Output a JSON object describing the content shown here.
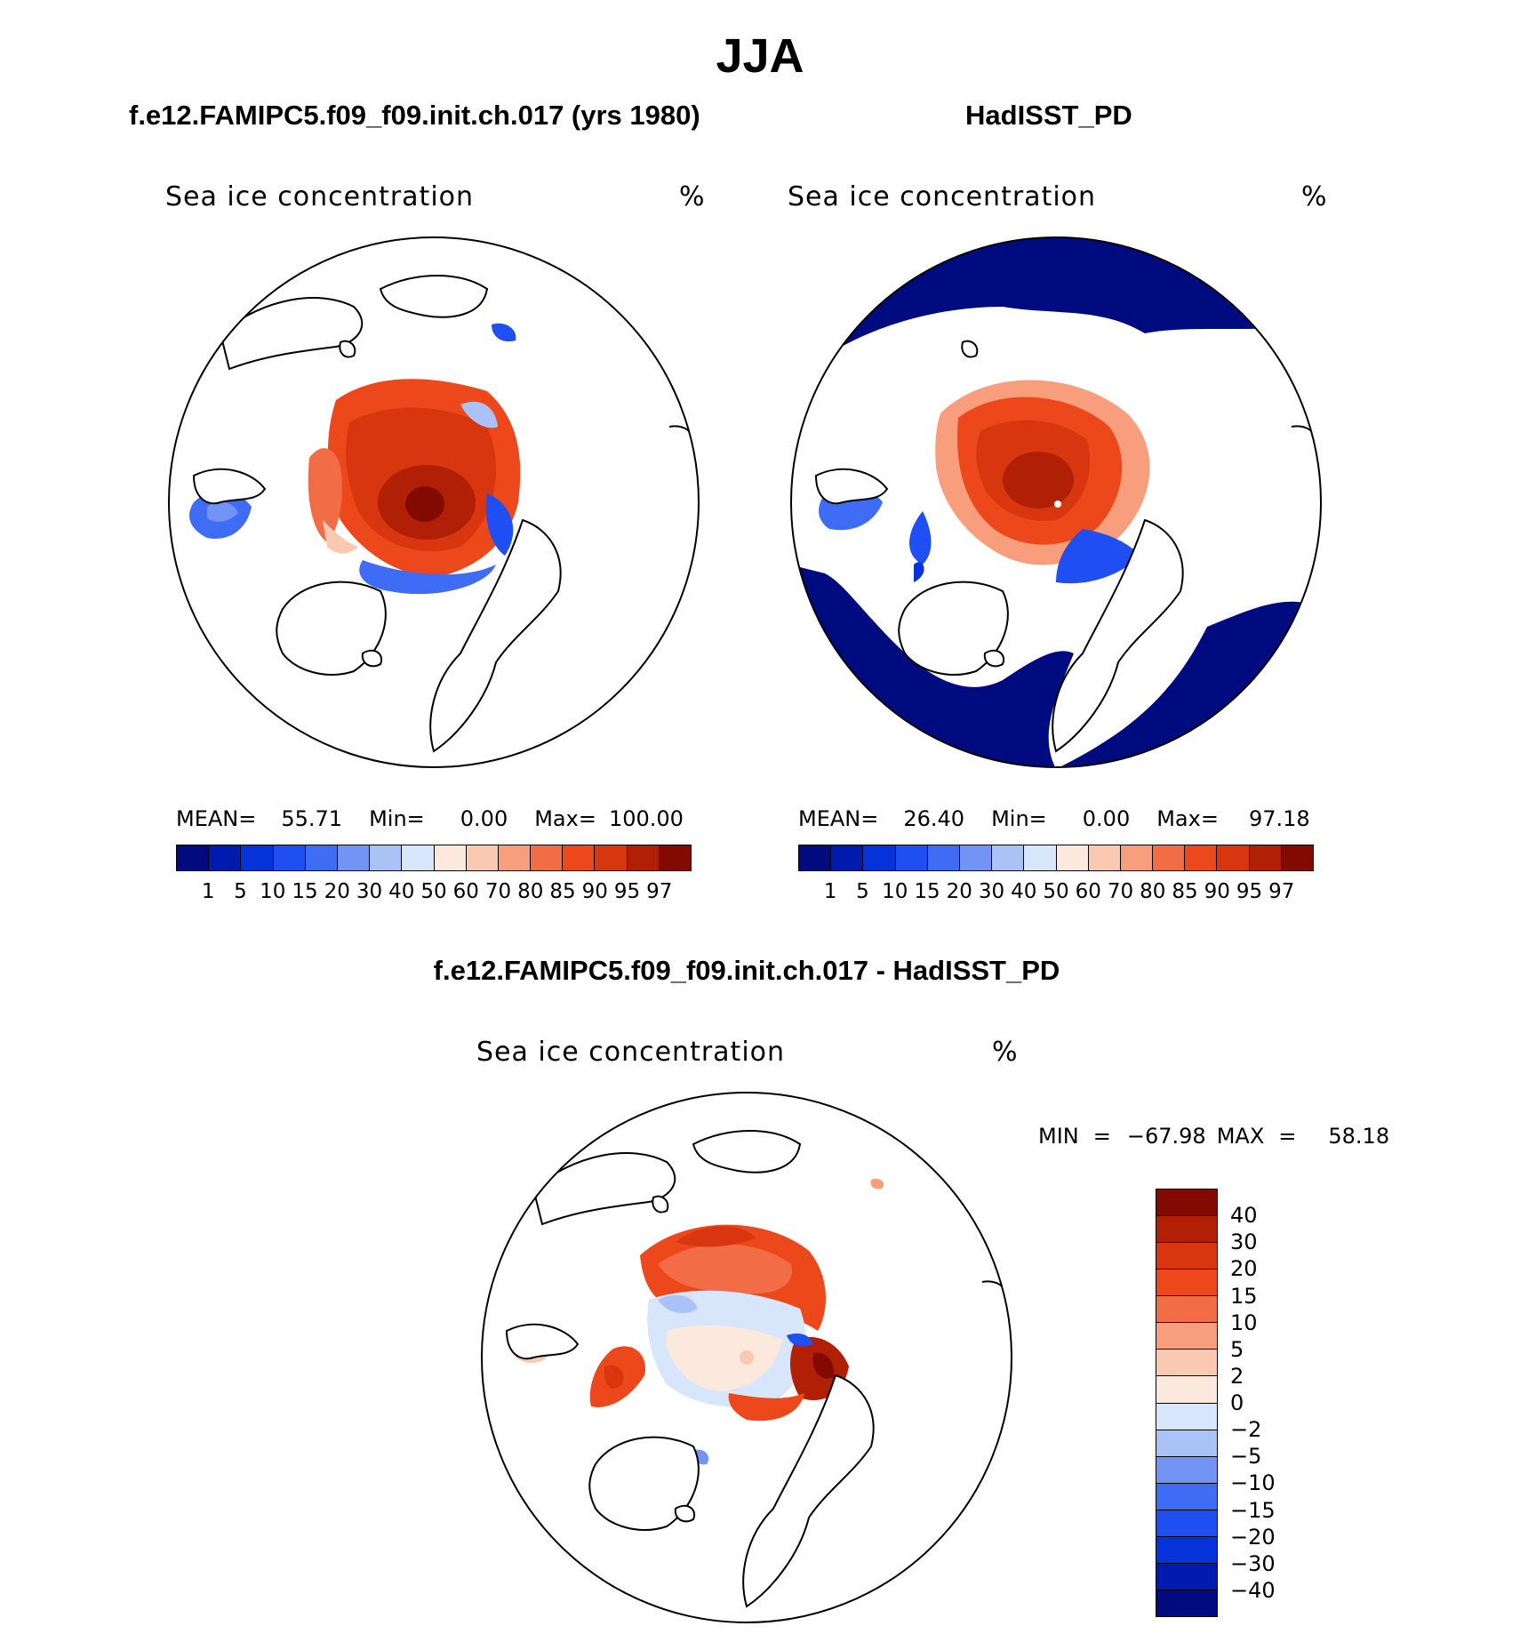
{
  "title": "JJA",
  "panels": [
    {
      "id": "model",
      "title": "f.e12.FAMIPC5.f09_f09.init.ch.017 (yrs 1980)",
      "variable": "Sea ice concentration",
      "units": "%",
      "stats": {
        "mean_label": "MEAN=",
        "mean": "55.71",
        "min_label": "Min=",
        "min": "0.00",
        "max_label": "Max=",
        "max": "100.00"
      }
    },
    {
      "id": "obs",
      "title": "HadISST_PD",
      "variable": "Sea ice concentration",
      "units": "%",
      "stats": {
        "mean_label": "MEAN=",
        "mean": "26.40",
        "min_label": "Min=",
        "min": "0.00",
        "max_label": "Max=",
        "max": "97.18"
      }
    },
    {
      "id": "diff",
      "title": "f.e12.FAMIPC5.f09_f09.init.ch.017 - HadISST_PD",
      "variable": "Sea ice concentration",
      "units": "%",
      "stats": {
        "min_label": "MIN",
        "eq1": "=",
        "min": "−67.98",
        "max_label": "MAX",
        "eq2": "=",
        "max": "58.18"
      }
    }
  ],
  "colorbar_main": {
    "colors": [
      "#000b80",
      "#001cb0",
      "#0633d9",
      "#1f4ef2",
      "#3f6cf5",
      "#7194f5",
      "#abc2f7",
      "#d7e6fb",
      "#fbe9dd",
      "#fac9b2",
      "#f89e7c",
      "#f26d45",
      "#ec481b",
      "#d7360e",
      "#b21f07",
      "#830a00"
    ],
    "labels": [
      "1",
      "5",
      "10",
      "15",
      "20",
      "30",
      "40",
      "50",
      "60",
      "70",
      "80",
      "85",
      "90",
      "95",
      "97"
    ]
  },
  "colorbar_diff": {
    "colors": [
      "#830a00",
      "#b21f07",
      "#d7360e",
      "#ec481b",
      "#f26d45",
      "#f89e7c",
      "#fac9b2",
      "#fbe9dd",
      "#d7e6fb",
      "#abc2f7",
      "#7194f5",
      "#3f6cf5",
      "#1f4ef2",
      "#0633d9",
      "#001cb0",
      "#000b80"
    ],
    "labels": [
      "40",
      "30",
      "20",
      "15",
      "10",
      "5",
      "2",
      "0",
      "−2",
      "−5",
      "−10",
      "−15",
      "−20",
      "−30",
      "−40"
    ]
  }
}
